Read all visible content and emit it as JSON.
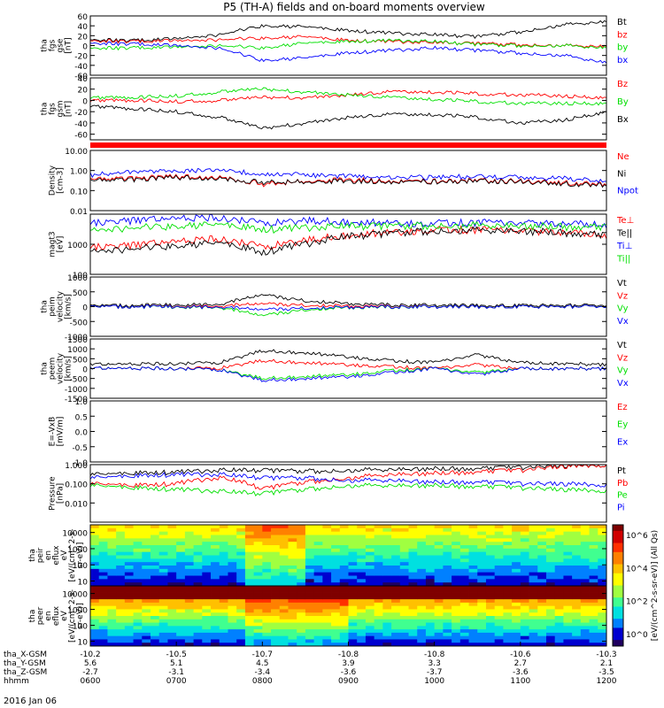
{
  "title": "P5 (TH-A) fields and on-board moments overview",
  "date_label": "2016 Jan 06",
  "colors": {
    "black": "#000000",
    "red": "#ff0000",
    "green": "#00e000",
    "blue": "#0000ff",
    "bar": "#ff0000"
  },
  "chart_data": [
    {
      "id": "fgs_gse",
      "type": "line",
      "ylabel": [
        "tha",
        "fgs",
        "gse",
        "[nT]"
      ],
      "ylim": [
        -60,
        60
      ],
      "yticks": [
        "60",
        "40",
        "20",
        "0",
        "-20",
        "-40",
        "-60"
      ],
      "ytick_values": [
        60,
        40,
        20,
        0,
        -20,
        -40,
        -60
      ],
      "series": [
        {
          "name": "Bt",
          "color": "black",
          "values": [
            12,
            10,
            14,
            22,
            40,
            38,
            30,
            25,
            22,
            18,
            28,
            42,
            48
          ]
        },
        {
          "name": "bz",
          "color": "red",
          "values": [
            10,
            8,
            10,
            12,
            15,
            18,
            10,
            8,
            6,
            4,
            2,
            0,
            -2
          ]
        },
        {
          "name": "by",
          "color": "green",
          "values": [
            -5,
            -5,
            -3,
            0,
            -5,
            5,
            8,
            10,
            8,
            2,
            0,
            0,
            -5
          ]
        },
        {
          "name": "bx",
          "color": "blue",
          "values": [
            5,
            3,
            0,
            -5,
            -30,
            -25,
            -15,
            -10,
            -5,
            -10,
            -15,
            -20,
            -35
          ]
        }
      ]
    },
    {
      "id": "fgs_gsm",
      "type": "line",
      "ylabel": [
        "tha",
        "fgs",
        "gsm",
        "[nT]"
      ],
      "ylim": [
        -70,
        40
      ],
      "yticks": [
        "40",
        "20",
        "0",
        "-20",
        "-40",
        "-60"
      ],
      "ytick_values": [
        40,
        20,
        0,
        -20,
        -40,
        -60
      ],
      "series": [
        {
          "name": "Bz",
          "color": "red",
          "values": [
            0,
            0,
            -2,
            0,
            5,
            5,
            10,
            15,
            15,
            12,
            10,
            8,
            5
          ]
        },
        {
          "name": "By",
          "color": "green",
          "values": [
            5,
            5,
            8,
            15,
            20,
            15,
            10,
            5,
            2,
            -2,
            -5,
            -5,
            -5
          ]
        },
        {
          "name": "Bx",
          "color": "black",
          "values": [
            -10,
            -15,
            -20,
            -30,
            -50,
            -40,
            -30,
            -25,
            -25,
            -30,
            -40,
            -35,
            -20
          ]
        }
      ]
    },
    {
      "id": "density",
      "type": "line",
      "ylabel": [
        "Density",
        "[cm-3]"
      ],
      "ylog": true,
      "ylim": [
        0.01,
        10
      ],
      "yticks": [
        "10.00",
        "1.00",
        "0.10",
        "0.01"
      ],
      "ytick_values": [
        10,
        1,
        0.1,
        0.01
      ],
      "series": [
        {
          "name": "Ne",
          "color": "red",
          "values": [
            0.35,
            0.4,
            0.5,
            0.45,
            0.2,
            0.3,
            0.35,
            0.3,
            0.3,
            0.32,
            0.3,
            0.25,
            0.2
          ]
        },
        {
          "name": "Ni",
          "color": "black",
          "values": [
            0.3,
            0.35,
            0.45,
            0.4,
            0.25,
            0.28,
            0.3,
            0.28,
            0.28,
            0.3,
            0.28,
            0.22,
            0.18
          ]
        },
        {
          "name": "Npot",
          "color": "blue",
          "values": [
            0.6,
            0.8,
            0.9,
            1.0,
            0.7,
            0.6,
            0.5,
            0.45,
            0.45,
            0.5,
            0.45,
            0.4,
            0.3
          ]
        }
      ]
    },
    {
      "id": "temperature",
      "type": "line",
      "ylabel": [
        "magt3",
        "[eV]"
      ],
      "ylog": true,
      "ylim": [
        100,
        10000
      ],
      "yticks": [
        "1000",
        "100"
      ],
      "ytick_values": [
        1000,
        100
      ],
      "series": [
        {
          "name": "Te⊥",
          "color": "red",
          "values": [
            800,
            900,
            1200,
            1500,
            800,
            1300,
            2000,
            2500,
            3000,
            3000,
            2800,
            2500,
            2000
          ]
        },
        {
          "name": "Te||",
          "color": "black",
          "values": [
            600,
            700,
            900,
            1100,
            500,
            1000,
            1800,
            2300,
            2800,
            2900,
            2700,
            2400,
            1900
          ]
        },
        {
          "name": "Ti⊥",
          "color": "blue",
          "values": [
            5000,
            6000,
            7000,
            7500,
            5000,
            6000,
            5500,
            5000,
            5000,
            5200,
            5000,
            4800,
            4500
          ]
        },
        {
          "name": "Ti||",
          "color": "green",
          "values": [
            3000,
            3500,
            4000,
            4500,
            3000,
            3500,
            4000,
            4000,
            4200,
            4200,
            4000,
            3800,
            3500
          ]
        }
      ]
    },
    {
      "id": "peim_velocity",
      "type": "line",
      "ylabel": [
        "tha",
        "peim",
        "velocity",
        "[km/s]"
      ],
      "ylim": [
        -1000,
        1000
      ],
      "yticks": [
        "1000",
        "500",
        "0",
        "-500",
        "-1000"
      ],
      "ytick_values": [
        1000,
        500,
        0,
        -500,
        -1000
      ],
      "series": [
        {
          "name": "Vt",
          "color": "black",
          "values": [
            30,
            40,
            60,
            80,
            400,
            200,
            100,
            60,
            50,
            40,
            40,
            40,
            40
          ]
        },
        {
          "name": "Vz",
          "color": "red",
          "values": [
            0,
            0,
            10,
            20,
            100,
            50,
            20,
            10,
            0,
            0,
            0,
            0,
            0
          ]
        },
        {
          "name": "Vy",
          "color": "green",
          "values": [
            0,
            0,
            -10,
            -20,
            -300,
            -100,
            -30,
            -10,
            0,
            0,
            0,
            0,
            0
          ]
        },
        {
          "name": "Vx",
          "color": "blue",
          "values": [
            0,
            0,
            0,
            -10,
            -100,
            -50,
            -20,
            0,
            0,
            0,
            0,
            0,
            0
          ]
        }
      ]
    },
    {
      "id": "peem_velocity",
      "type": "line",
      "ylabel": [
        "tha",
        "peem",
        "velocity",
        "[km/s]"
      ],
      "ylim": [
        -1500,
        1500
      ],
      "yticks": [
        "1500",
        "1000",
        "500",
        "0",
        "-500",
        "-1000",
        "-1500"
      ],
      "ytick_values": [
        1500,
        1000,
        500,
        0,
        -500,
        -1000,
        -1500
      ],
      "series": [
        {
          "name": "Vt",
          "color": "black",
          "values": [
            200,
            220,
            250,
            300,
            900,
            800,
            600,
            400,
            300,
            700,
            300,
            250,
            200
          ]
        },
        {
          "name": "Vz",
          "color": "red",
          "values": [
            0,
            0,
            0,
            20,
            400,
            300,
            200,
            100,
            0,
            200,
            0,
            0,
            0
          ]
        },
        {
          "name": "Vy",
          "color": "green",
          "values": [
            0,
            0,
            0,
            -50,
            -500,
            -400,
            -300,
            -100,
            0,
            -200,
            0,
            0,
            0
          ]
        },
        {
          "name": "Vx",
          "color": "blue",
          "values": [
            0,
            0,
            0,
            -50,
            -600,
            -500,
            -400,
            -200,
            0,
            -300,
            0,
            0,
            0
          ]
        }
      ]
    },
    {
      "id": "efield",
      "type": "line",
      "ylabel": [
        "E=-VxB",
        "[mV/m]"
      ],
      "ylim": [
        -1,
        1
      ],
      "yticks": [
        "1.0",
        "0.5",
        "0.0",
        "-0.5",
        "-1.0"
      ],
      "ytick_values": [
        1,
        0.5,
        0,
        -0.5,
        -1
      ],
      "series": [
        {
          "name": "Ez",
          "color": "red",
          "values": []
        },
        {
          "name": "Ey",
          "color": "green",
          "values": []
        },
        {
          "name": "Ex",
          "color": "blue",
          "values": []
        }
      ]
    },
    {
      "id": "pressure",
      "type": "line",
      "ylabel": [
        "Pressure",
        "[nPa]"
      ],
      "ylog": true,
      "ylim": [
        0.001,
        1
      ],
      "yticks": [
        "1.000",
        "0.100",
        "0.010"
      ],
      "ytick_values": [
        1,
        0.1,
        0.01
      ],
      "series": [
        {
          "name": "Pt",
          "color": "black",
          "values": [
            0.3,
            0.35,
            0.4,
            0.5,
            0.5,
            0.45,
            0.5,
            0.55,
            0.6,
            0.6,
            0.7,
            0.9,
            0.9
          ]
        },
        {
          "name": "Pb",
          "color": "red",
          "values": [
            0.1,
            0.08,
            0.1,
            0.2,
            0.05,
            0.12,
            0.2,
            0.3,
            0.35,
            0.4,
            0.5,
            0.8,
            0.9
          ]
        },
        {
          "name": "Pe",
          "color": "green",
          "values": [
            0.08,
            0.06,
            0.05,
            0.04,
            0.03,
            0.05,
            0.08,
            0.08,
            0.08,
            0.07,
            0.06,
            0.05,
            0.04
          ]
        },
        {
          "name": "Pi",
          "color": "blue",
          "values": [
            0.2,
            0.25,
            0.3,
            0.3,
            0.2,
            0.2,
            0.15,
            0.15,
            0.12,
            0.12,
            0.1,
            0.1,
            0.08
          ]
        }
      ]
    },
    {
      "id": "peir_spectrogram",
      "type": "heatmap",
      "ylabel": [
        "tha",
        "peir",
        "en",
        "eflux",
        "eV",
        "[eV/(cm^2-s-",
        "sr-eV)]"
      ],
      "ylog": true,
      "ylim": [
        5,
        30000
      ],
      "yticks": [
        "10000",
        "1000",
        "100",
        "10"
      ],
      "ytick_values": [
        10000,
        1000,
        100,
        10
      ]
    },
    {
      "id": "peer_spectrogram",
      "type": "heatmap",
      "ylabel": [
        "tha",
        "peer",
        "en",
        "eflux",
        "eV",
        "[eV/(cm^2-s-",
        "sr-eV)]"
      ],
      "ylog": true,
      "ylim": [
        5,
        30000
      ],
      "yticks": [
        "10000",
        "1000",
        "100",
        "10"
      ],
      "ytick_values": [
        10000,
        1000,
        100,
        10
      ]
    }
  ],
  "colorbar": {
    "label": "[eV/(cm^2-s-sr-eV)] (All Qs)",
    "ticks": [
      "10^6",
      "10^4",
      "10^2",
      "10^0"
    ]
  },
  "orbit_rows": [
    {
      "label": "tha_X-GSM",
      "values": [
        "-10.2",
        "-10.5",
        "-10.7",
        "-10.8",
        "-10.8",
        "-10.6",
        "-10.3"
      ]
    },
    {
      "label": "tha_Y-GSM",
      "values": [
        "5.6",
        "5.1",
        "4.5",
        "3.9",
        "3.3",
        "2.7",
        "2.1"
      ]
    },
    {
      "label": "tha_Z-GSM",
      "values": [
        "-2.7",
        "-3.1",
        "-3.4",
        "-3.6",
        "-3.7",
        "-3.6",
        "-3.5"
      ]
    },
    {
      "label": "hhmm",
      "values": [
        "0600",
        "0700",
        "0800",
        "0900",
        "1000",
        "1100",
        "1200"
      ]
    }
  ]
}
